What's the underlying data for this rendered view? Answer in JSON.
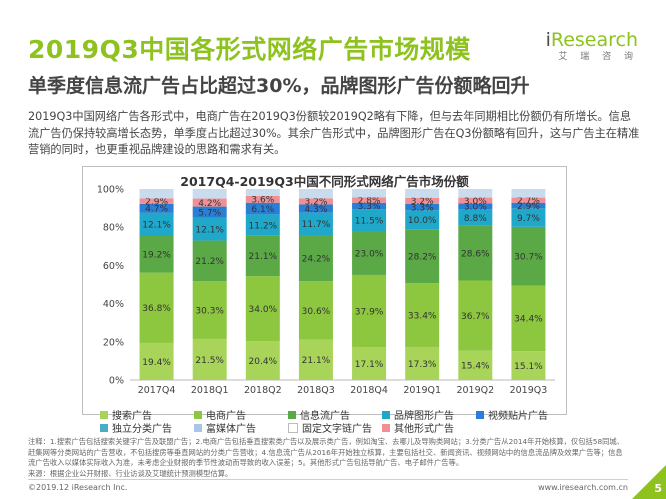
{
  "page": {
    "title": "2019Q3中国各形式网络广告市场规模",
    "subtitle": "单季度信息流广告占比超过30%，品牌图形广告份额略回升",
    "paragraph": "2019Q3中国网络广告各形式中，电商广告在2019Q3份额较2019Q2略有下降，但与去年同期相比份额仍有所增长。信息流广告仍保持较高增长态势，单季度占比超过30%。其余广告形式中，品牌图形广告在Q3份额略有回升，这与广告主在精准营销的同时，也更重视品牌建设的思路和需求有关。",
    "notes": "注释：1.搜索广告包括搜索关键字广告及联盟广告；2.电商广告包括垂直搜索类广告以及展示类广告，例如淘宝、去哪儿及导购类网站；3.分类广告从2014年开始核算，仅包括58同城、赶集网等分类网站的广告营收，不包括搜房等垂直网站的分类广告营收；4.信息流广告从2016年开始独立核算，主要包括社交、新闻资讯、视频网站中的信息流品牌及效果广告等；信息流广告收入以媒体实际收入为准，未考虑企业财报的季节性波动而导致的收入误差；5。其他形式广告包括导航广告、电子邮件广告等。",
    "source": "来源：根据企业公开财报、行业访谈及艾瑞统计预测模型估算。",
    "copyright": "©2019.12 iResearch Inc.",
    "website": "www.iresearch.com.cn",
    "page_number": "5"
  },
  "logo": {
    "i": "i",
    "rest": "Research",
    "sub": "艾 瑞 咨 询"
  },
  "chart_data": {
    "type": "bar",
    "stacked": true,
    "percent": true,
    "title": "2017Q4-2019Q3中国不同形式网络广告市场份额",
    "categories": [
      "2017Q4",
      "2018Q1",
      "2018Q2",
      "2018Q3",
      "2018Q4",
      "2019Q1",
      "2019Q2",
      "2019Q3"
    ],
    "yticks": [
      "0%",
      "20%",
      "40%",
      "60%",
      "80%",
      "100%"
    ],
    "ylim": [
      0,
      100
    ],
    "series": [
      {
        "name": "搜索广告",
        "color": "#a8d45a",
        "values": [
          19.4,
          21.5,
          20.4,
          21.1,
          17.1,
          17.3,
          15.4,
          15.1
        ]
      },
      {
        "name": "电商广告",
        "color": "#8dc63f",
        "values": [
          36.8,
          30.3,
          34.0,
          30.6,
          37.9,
          33.4,
          36.7,
          34.4
        ]
      },
      {
        "name": "信息流广告",
        "color": "#5aa846",
        "values": [
          19.2,
          21.2,
          21.1,
          24.2,
          23.0,
          28.2,
          28.6,
          30.7
        ]
      },
      {
        "name": "独立分类广告",
        "color": "#4bacc6",
        "values": [
          null,
          null,
          null,
          null,
          null,
          null,
          null,
          null
        ]
      },
      {
        "name": "品牌图形广告",
        "color": "#1fa8c9",
        "values": [
          12.1,
          12.1,
          11.2,
          11.7,
          11.5,
          10.0,
          8.8,
          9.7
        ]
      },
      {
        "name": "视频贴片广告",
        "color": "#2a7fd4",
        "values": [
          4.7,
          5.7,
          6.1,
          4.3,
          3.3,
          3.3,
          3.0,
          2.9
        ]
      },
      {
        "name": "富媒体广告",
        "color": "#a9c5e8",
        "values": [
          null,
          null,
          null,
          null,
          null,
          null,
          null,
          null
        ]
      },
      {
        "name": "固定文字链广告",
        "color": "#ffffff",
        "values": [
          null,
          null,
          null,
          null,
          null,
          null,
          null,
          null
        ]
      },
      {
        "name": "其他形式广告",
        "color": "#f08f94",
        "values": [
          2.9,
          4.2,
          3.6,
          3.2,
          2.8,
          3.2,
          3.0,
          2.7
        ]
      }
    ],
    "legend": [
      "搜索广告",
      "电商广告",
      "信息流广告",
      "品牌图形广告",
      "视频贴片广告",
      "独立分类广告",
      "富媒体广告",
      "固定文字链广告",
      "其他形式广告"
    ],
    "legend_colors": [
      "#a8d45a",
      "#8dc63f",
      "#5aa846",
      "#1fa8c9",
      "#2a7fd4",
      "#4bacc6",
      "#a9c5e8",
      "#ffffff",
      "#f08f94"
    ]
  }
}
